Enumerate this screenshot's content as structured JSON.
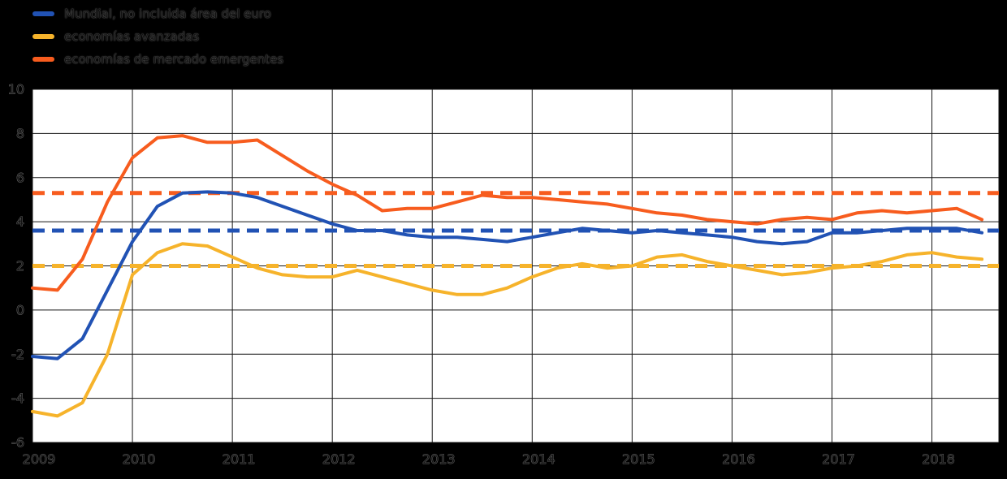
{
  "page": {
    "background": "#000000",
    "plot_background": "#ffffff",
    "grid_color": "#141414",
    "text_color": "#151515"
  },
  "chart_data": {
    "type": "line",
    "title": "",
    "xlabel": "",
    "ylabel": "",
    "grid": true,
    "legend_position": "top-left",
    "x_unit": "quarterly",
    "x_start": 2009,
    "x_step": 0.25,
    "x_domain": [
      2009,
      2018.67
    ],
    "ylim": [
      -6,
      10
    ],
    "y_ticks": [
      10,
      8,
      6,
      4,
      2,
      0,
      -2,
      -4,
      -6
    ],
    "x_ticks": [
      2009,
      2010,
      2011,
      2012,
      2013,
      2014,
      2015,
      2016,
      2017,
      2018
    ],
    "series": [
      {
        "name": "Mundial, no incluida área del euro",
        "color": "#2152b4",
        "dashed_average": 3.6,
        "values": [
          -2.1,
          -2.2,
          -1.3,
          0.9,
          3.1,
          4.7,
          5.3,
          5.35,
          5.3,
          5.1,
          4.7,
          4.3,
          3.9,
          3.6,
          3.6,
          3.4,
          3.3,
          3.3,
          3.2,
          3.1,
          3.3,
          3.5,
          3.7,
          3.6,
          3.5,
          3.6,
          3.5,
          3.4,
          3.3,
          3.1,
          3.0,
          3.1,
          3.5,
          3.5,
          3.6,
          3.7,
          3.7,
          3.7,
          3.5
        ]
      },
      {
        "name": "economías avanzadas",
        "color": "#f6b32b",
        "dashed_average": 2.0,
        "values": [
          -4.6,
          -4.8,
          -4.2,
          -2.0,
          1.6,
          2.6,
          3.0,
          2.9,
          2.4,
          1.9,
          1.6,
          1.5,
          1.5,
          1.8,
          1.5,
          1.2,
          0.9,
          0.7,
          0.7,
          1.0,
          1.5,
          1.9,
          2.1,
          1.9,
          2.0,
          2.4,
          2.5,
          2.2,
          2.0,
          1.8,
          1.6,
          1.7,
          1.9,
          2.0,
          2.2,
          2.5,
          2.6,
          2.4,
          2.3
        ]
      },
      {
        "name": "economías de mercado emergentes",
        "color": "#f75c1e",
        "dashed_average": 5.3,
        "values": [
          1.0,
          0.9,
          2.3,
          4.9,
          6.9,
          7.8,
          7.9,
          7.6,
          7.6,
          7.7,
          7.0,
          6.3,
          5.7,
          5.2,
          4.5,
          4.6,
          4.6,
          4.9,
          5.2,
          5.1,
          5.1,
          5.0,
          4.9,
          4.8,
          4.6,
          4.4,
          4.3,
          4.1,
          4.0,
          3.9,
          4.1,
          4.2,
          4.1,
          4.4,
          4.5,
          4.4,
          4.5,
          4.6,
          4.1
        ]
      }
    ]
  }
}
